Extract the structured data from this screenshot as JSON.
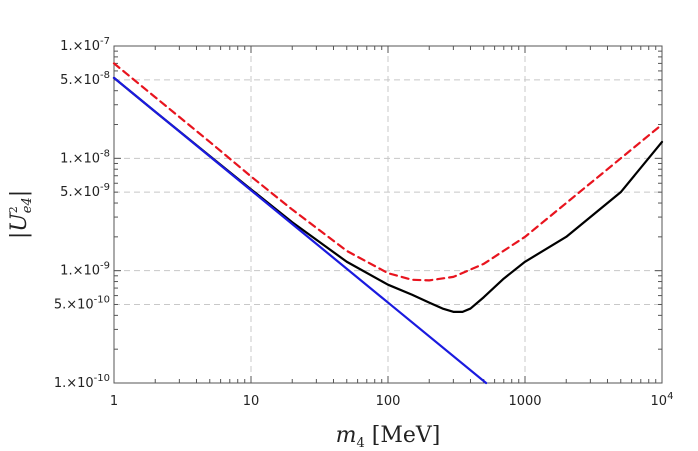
{
  "chart_data": {
    "type": "line",
    "title": "",
    "xlabel": {
      "base": "m",
      "sub": "4",
      "unit": "[MeV]"
    },
    "ylabel": {
      "text": "|U",
      "sub": "e4",
      "sup": "2",
      "close": "|"
    },
    "x_scale": "log",
    "y_scale": "log",
    "xlim": [
      1,
      10000
    ],
    "ylim": [
      1e-10,
      1e-07
    ],
    "grid": true,
    "legend": "none",
    "x_ticks": [
      {
        "value": 1,
        "label": "1"
      },
      {
        "value": 10,
        "label": "10"
      },
      {
        "value": 100,
        "label": "100"
      },
      {
        "value": 1000,
        "label": "1000"
      },
      {
        "value": 10000,
        "label": "10",
        "sup": "4"
      }
    ],
    "y_ticks": [
      {
        "value": 1e-10,
        "label": "1.×10",
        "sup": "-10"
      },
      {
        "value": 5e-10,
        "label": "5.×10",
        "sup": "-10"
      },
      {
        "value": 1e-09,
        "label": "1.×10",
        "sup": "-9"
      },
      {
        "value": 5e-09,
        "label": "5.×10",
        "sup": "-9"
      },
      {
        "value": 1e-08,
        "label": "1.×10",
        "sup": "-8"
      },
      {
        "value": 5e-08,
        "label": "5.×10",
        "sup": "-8"
      },
      {
        "value": 1e-07,
        "label": "1.×10",
        "sup": "-7"
      }
    ],
    "series": [
      {
        "color": "#e8141e",
        "dash": "dashed",
        "x": [
          1,
          2,
          5,
          10,
          20,
          50,
          100,
          150,
          200,
          300,
          500,
          1000,
          2000,
          5000,
          10000
        ],
        "y": [
          7e-08,
          3.5e-08,
          1.4e-08,
          6.9e-09,
          3.5e-09,
          1.5e-09,
          9.5e-10,
          8.3e-10,
          8.2e-10,
          8.8e-10,
          1.15e-09,
          2e-09,
          4e-09,
          1e-08,
          2e-08
        ]
      },
      {
        "color": "#000000",
        "dash": "solid",
        "x": [
          1,
          2,
          5,
          10,
          20,
          50,
          100,
          150,
          200,
          250,
          300,
          350,
          400,
          500,
          700,
          1000,
          2000,
          5000,
          10000
        ],
        "y": [
          5.2e-08,
          2.6e-08,
          1.05e-08,
          5.3e-09,
          2.7e-09,
          1.2e-09,
          7.5e-10,
          6.1e-10,
          5.2e-10,
          4.6e-10,
          4.3e-10,
          4.3e-10,
          4.6e-10,
          5.8e-10,
          8.5e-10,
          1.2e-09,
          2e-09,
          5e-09,
          1.4e-08
        ]
      },
      {
        "color": "#1a1adf",
        "dash": "solid",
        "x": [
          1,
          10,
          100,
          520
        ],
        "y": [
          5.2e-08,
          5.2e-09,
          5.2e-10,
          1e-10
        ]
      }
    ]
  }
}
